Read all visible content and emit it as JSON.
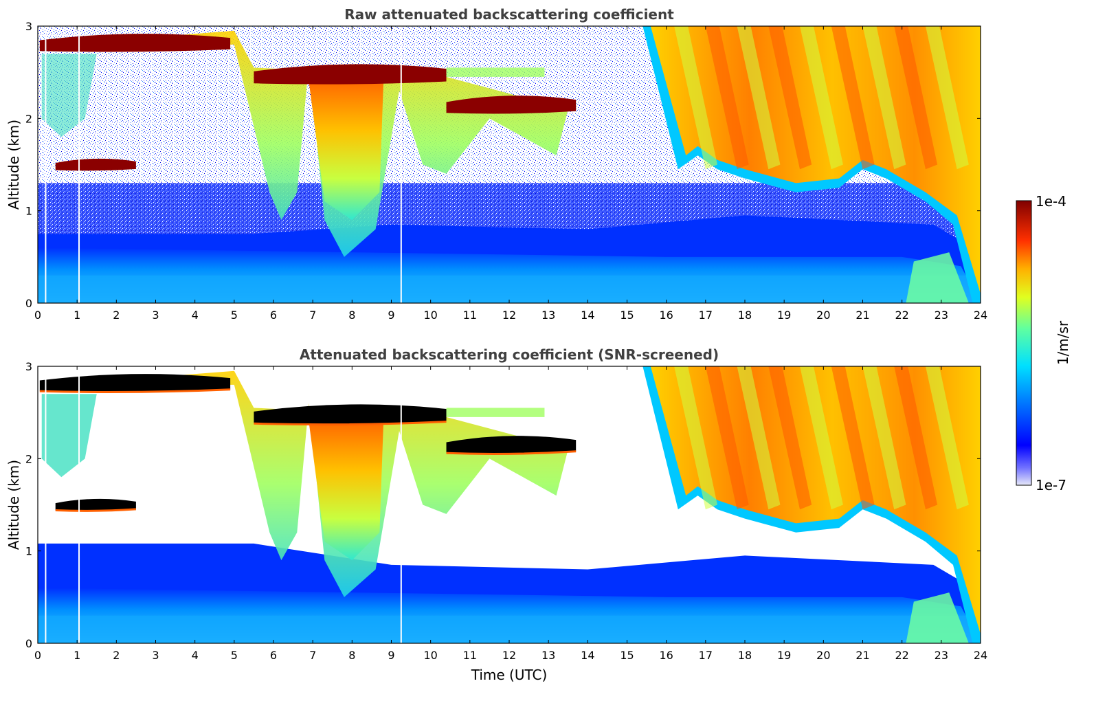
{
  "chart_data": [
    {
      "type": "heatmap",
      "title": "Raw attenuated backscattering coefficient",
      "xlabel": "",
      "ylabel": "Altitude (km)",
      "xlim": [
        0,
        24
      ],
      "ylim": [
        0,
        3
      ],
      "x_ticks": [
        0,
        1,
        2,
        3,
        4,
        5,
        6,
        7,
        8,
        9,
        10,
        11,
        12,
        13,
        14,
        15,
        16,
        17,
        18,
        19,
        20,
        21,
        22,
        23,
        24
      ],
      "y_ticks": [
        0,
        1,
        2,
        3
      ],
      "screened": false,
      "cloud_layers": [
        {
          "x": [
            0.05,
            4.9
          ],
          "y_mid": 2.82,
          "thickness": 0.18
        },
        {
          "x": [
            5.5,
            10.4
          ],
          "y_mid": 2.48,
          "thickness": 0.2
        },
        {
          "x": [
            10.4,
            13.7
          ],
          "y_mid": 2.15,
          "thickness": 0.18
        },
        {
          "x": [
            0.45,
            2.5
          ],
          "y_mid": 1.5,
          "thickness": 0.12
        }
      ],
      "data_gaps_hours": [
        0.2,
        1.05,
        9.25
      ]
    },
    {
      "type": "heatmap",
      "title": "Attenuated backscattering coefficient (SNR-screened)",
      "xlabel": "Time (UTC)",
      "ylabel": "Altitude (km)",
      "xlim": [
        0,
        24
      ],
      "ylim": [
        0,
        3
      ],
      "x_ticks": [
        0,
        1,
        2,
        3,
        4,
        5,
        6,
        7,
        8,
        9,
        10,
        11,
        12,
        13,
        14,
        15,
        16,
        17,
        18,
        19,
        20,
        21,
        22,
        23,
        24
      ],
      "y_ticks": [
        0,
        1,
        2,
        3
      ],
      "screened": true,
      "cloud_layers": [
        {
          "x": [
            0.05,
            4.9
          ],
          "y_mid": 2.82,
          "thickness": 0.18
        },
        {
          "x": [
            5.5,
            10.4
          ],
          "y_mid": 2.48,
          "thickness": 0.2
        },
        {
          "x": [
            10.4,
            13.7
          ],
          "y_mid": 2.15,
          "thickness": 0.18
        },
        {
          "x": [
            0.45,
            2.5
          ],
          "y_mid": 1.5,
          "thickness": 0.12
        }
      ],
      "data_gaps_hours": [
        0.2,
        1.05,
        9.25
      ]
    }
  ],
  "colorbar": {
    "label": "1/m/sr",
    "max_label": "1e-4",
    "min_label": "1e-7",
    "scale": "log",
    "range": [
      1e-07,
      0.0001
    ],
    "colormap": "jet"
  }
}
